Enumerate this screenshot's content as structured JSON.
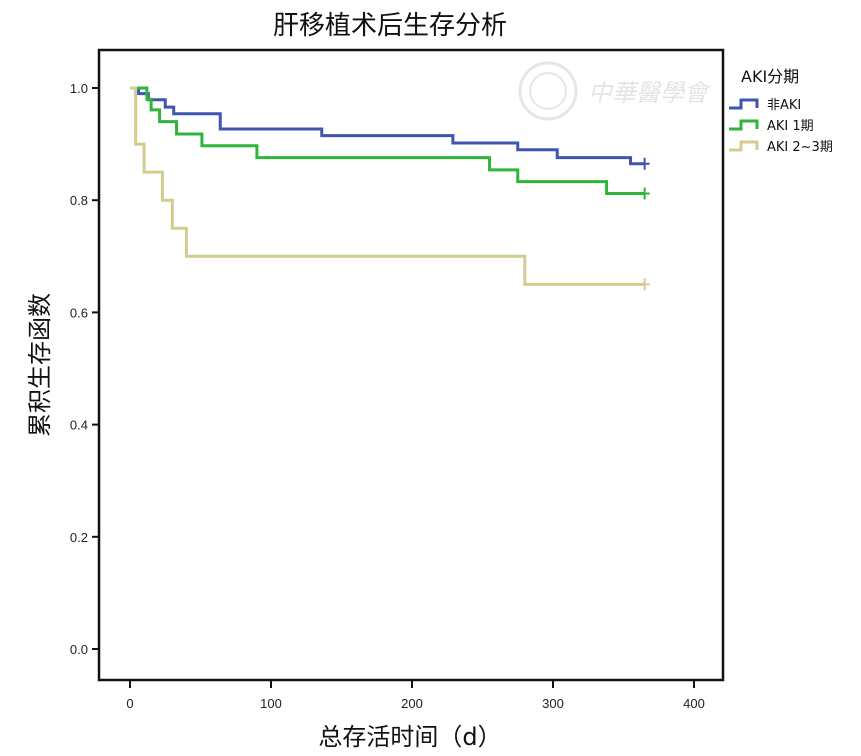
{
  "chart_data": {
    "type": "line",
    "subtype": "kaplan-meier step",
    "title": "肝移植术后生存分析",
    "xlabel": "总存活时间（d）",
    "ylabel": "累积生存函数",
    "xlim": [
      -20,
      420
    ],
    "ylim": [
      -0.06,
      1.07
    ],
    "xticks": [
      "0",
      "100",
      "200",
      "300",
      "400"
    ],
    "xtick_values": [
      0,
      100,
      200,
      300,
      400
    ],
    "yticks": [
      "0.0",
      "0.2",
      "0.4",
      "0.6",
      "0.8",
      "1.0"
    ],
    "ytick_values": [
      0,
      0.2,
      0.4,
      0.6,
      0.8,
      1.0
    ],
    "grid": false,
    "legend": {
      "title": "AKI分期",
      "placement": "right-outside"
    },
    "series": [
      {
        "name": "非AKI",
        "color": "#3f55b0",
        "steps": [
          [
            0,
            1.0
          ],
          [
            6,
            0.99
          ],
          [
            13,
            0.979
          ],
          [
            25,
            0.966
          ],
          [
            31,
            0.954
          ],
          [
            64,
            0.927
          ],
          [
            136,
            0.915
          ],
          [
            229,
            0.902
          ],
          [
            275,
            0.89
          ],
          [
            303,
            0.876
          ],
          [
            355,
            0.865
          ]
        ],
        "end": 365,
        "censor": [
          365
        ]
      },
      {
        "name": "AKI 1期",
        "color": "#2fb53c",
        "steps": [
          [
            0,
            1.0
          ],
          [
            12,
            0.98
          ],
          [
            15,
            0.961
          ],
          [
            21,
            0.94
          ],
          [
            33,
            0.918
          ],
          [
            51,
            0.897
          ],
          [
            90,
            0.876
          ],
          [
            255,
            0.854
          ],
          [
            275,
            0.833
          ],
          [
            338,
            0.812
          ]
        ],
        "end": 365,
        "censor": [
          365
        ]
      },
      {
        "name": "AKI 2~3期",
        "color": "#d4cc8f",
        "steps": [
          [
            0,
            1.0
          ],
          [
            4,
            0.9
          ],
          [
            10,
            0.85
          ],
          [
            23,
            0.8
          ],
          [
            30,
            0.75
          ],
          [
            40,
            0.7
          ],
          [
            280,
            0.65
          ]
        ],
        "end": 365,
        "censor": [
          365
        ]
      }
    ]
  },
  "watermark": {
    "text": "中華醫學會"
  }
}
